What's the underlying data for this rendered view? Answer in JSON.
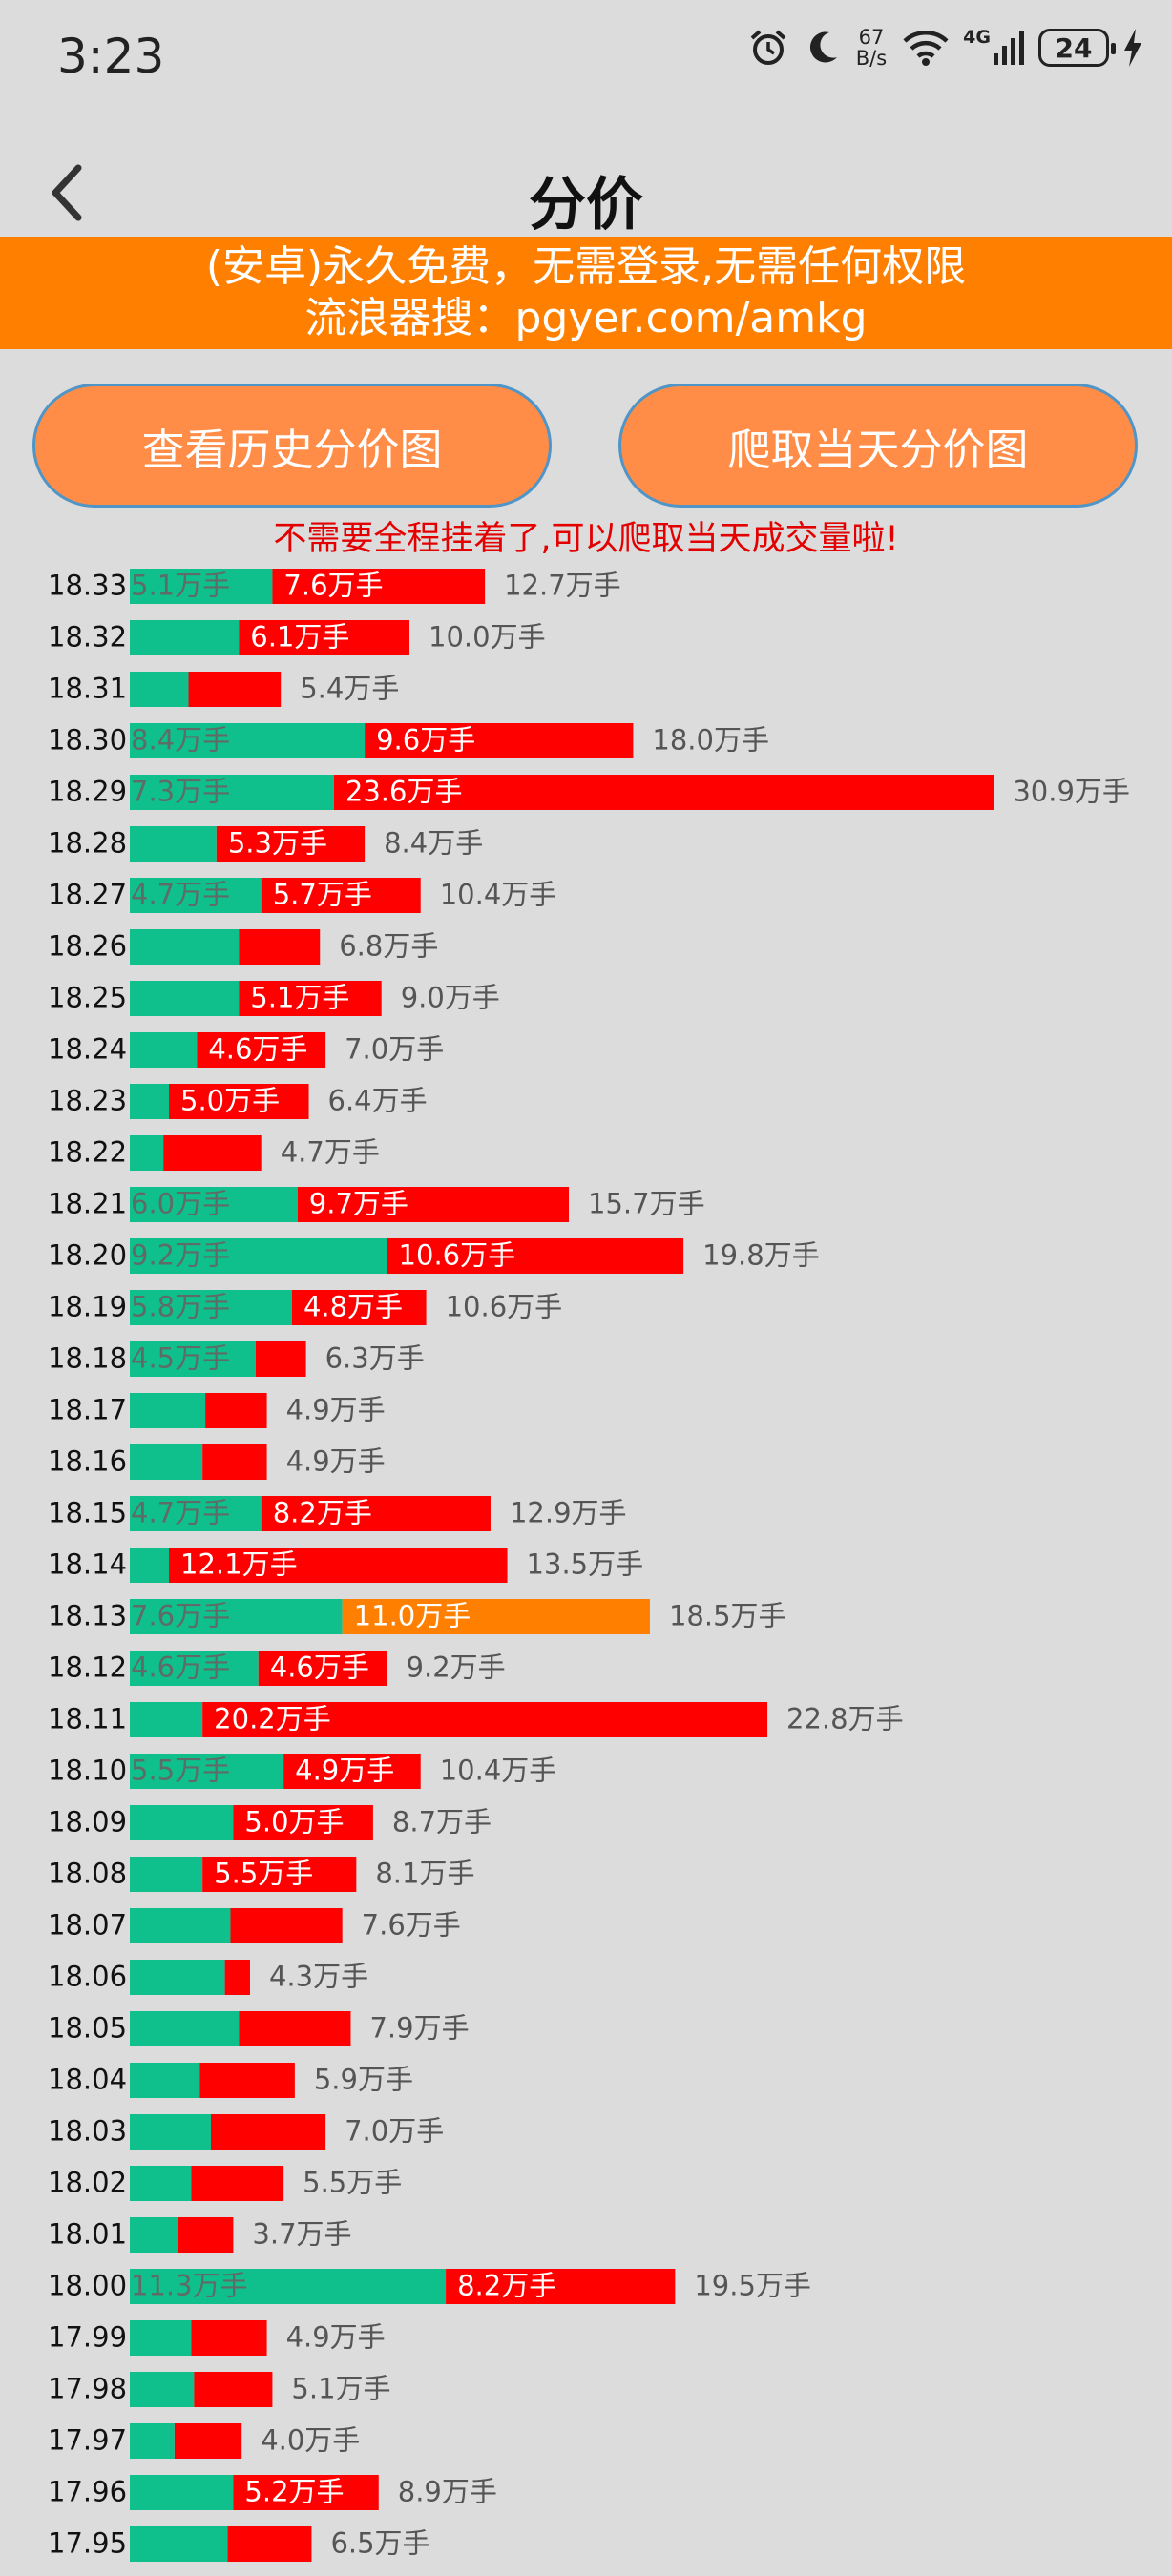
{
  "status_bar": {
    "time": "3:23",
    "net_speed_value": "67",
    "net_speed_unit": "B/s",
    "network_type": "4G",
    "battery_level": "24",
    "icons": [
      "alarm-icon",
      "moon-icon",
      "wifi-icon",
      "signal-icon",
      "battery-icon",
      "charging-icon"
    ]
  },
  "nav": {
    "title": "分价",
    "back_icon": "chevron-left-icon"
  },
  "banner": {
    "line1": "(安卓)永久免费，无需登录,无需任何权限",
    "line2": "流浪器搜：pgyer.com/amkg"
  },
  "buttons": {
    "history": "查看历史分价图",
    "crawl_today": "爬取当天分价图"
  },
  "notice": "不需要全程挂着了,可以爬取当天成交量啦!",
  "colors": {
    "green": "#10c08c",
    "red": "#ff0000",
    "highlight": "#ff8000",
    "banner": "#ff7f00",
    "button": "#ff8c47",
    "notice": "#e30000"
  },
  "chart_data": {
    "type": "bar",
    "orientation": "horizontal",
    "stacked": true,
    "unit": "万手",
    "series": [
      {
        "color": "#10c08c"
      },
      {
        "color": "#ff0000"
      }
    ],
    "rows": [
      {
        "price": "18.33",
        "buy": 5.1,
        "sell": 7.6,
        "total": 12.7,
        "buy_label": "5.1万手",
        "sell_label": "7.6万手",
        "total_label": "12.7万手"
      },
      {
        "price": "18.32",
        "buy": 3.9,
        "sell": 6.1,
        "total": 10.0,
        "buy_label": "",
        "sell_label": "6.1万手",
        "total_label": "10.0万手"
      },
      {
        "price": "18.31",
        "buy": 2.1,
        "sell": 3.3,
        "total": 5.4,
        "buy_label": "",
        "sell_label": "",
        "total_label": "5.4万手"
      },
      {
        "price": "18.30",
        "buy": 8.4,
        "sell": 9.6,
        "total": 18.0,
        "buy_label": "8.4万手",
        "sell_label": "9.6万手",
        "total_label": "18.0万手"
      },
      {
        "price": "18.29",
        "buy": 7.3,
        "sell": 23.6,
        "total": 30.9,
        "buy_label": "7.3万手",
        "sell_label": "23.6万手",
        "total_label": "30.9万手"
      },
      {
        "price": "18.28",
        "buy": 3.1,
        "sell": 5.3,
        "total": 8.4,
        "buy_label": "",
        "sell_label": "5.3万手",
        "total_label": "8.4万手"
      },
      {
        "price": "18.27",
        "buy": 4.7,
        "sell": 5.7,
        "total": 10.4,
        "buy_label": "4.7万手",
        "sell_label": "5.7万手",
        "total_label": "10.4万手"
      },
      {
        "price": "18.26",
        "buy": 3.9,
        "sell": 2.9,
        "total": 6.8,
        "buy_label": "",
        "sell_label": "",
        "total_label": "6.8万手"
      },
      {
        "price": "18.25",
        "buy": 3.9,
        "sell": 5.1,
        "total": 9.0,
        "buy_label": "",
        "sell_label": "5.1万手",
        "total_label": "9.0万手"
      },
      {
        "price": "18.24",
        "buy": 2.4,
        "sell": 4.6,
        "total": 7.0,
        "buy_label": "",
        "sell_label": "4.6万手",
        "total_label": "7.0万手"
      },
      {
        "price": "18.23",
        "buy": 1.4,
        "sell": 5.0,
        "total": 6.4,
        "buy_label": "",
        "sell_label": "5.0万手",
        "total_label": "6.4万手"
      },
      {
        "price": "18.22",
        "buy": 1.2,
        "sell": 3.5,
        "total": 4.7,
        "buy_label": "",
        "sell_label": "",
        "total_label": "4.7万手"
      },
      {
        "price": "18.21",
        "buy": 6.0,
        "sell": 9.7,
        "total": 15.7,
        "buy_label": "6.0万手",
        "sell_label": "9.7万手",
        "total_label": "15.7万手"
      },
      {
        "price": "18.20",
        "buy": 9.2,
        "sell": 10.6,
        "total": 19.8,
        "buy_label": "9.2万手",
        "sell_label": "10.6万手",
        "total_label": "19.8万手"
      },
      {
        "price": "18.19",
        "buy": 5.8,
        "sell": 4.8,
        "total": 10.6,
        "buy_label": "5.8万手",
        "sell_label": "4.8万手",
        "total_label": "10.6万手"
      },
      {
        "price": "18.18",
        "buy": 4.5,
        "sell": 1.8,
        "total": 6.3,
        "buy_label": "4.5万手",
        "sell_label": "",
        "total_label": "6.3万手"
      },
      {
        "price": "18.17",
        "buy": 2.7,
        "sell": 2.2,
        "total": 4.9,
        "buy_label": "",
        "sell_label": "",
        "total_label": "4.9万手"
      },
      {
        "price": "18.16",
        "buy": 2.6,
        "sell": 2.3,
        "total": 4.9,
        "buy_label": "",
        "sell_label": "",
        "total_label": "4.9万手"
      },
      {
        "price": "18.15",
        "buy": 4.7,
        "sell": 8.2,
        "total": 12.9,
        "buy_label": "4.7万手",
        "sell_label": "8.2万手",
        "total_label": "12.9万手"
      },
      {
        "price": "18.14",
        "buy": 1.4,
        "sell": 12.1,
        "total": 13.5,
        "buy_label": "",
        "sell_label": "12.1万手",
        "total_label": "13.5万手"
      },
      {
        "price": "18.13",
        "buy": 7.6,
        "sell": 11.0,
        "total": 18.5,
        "buy_label": "7.6万手",
        "sell_label": "11.0万手",
        "total_label": "18.5万手",
        "highlight": true
      },
      {
        "price": "18.12",
        "buy": 4.6,
        "sell": 4.6,
        "total": 9.2,
        "buy_label": "4.6万手",
        "sell_label": "4.6万手",
        "total_label": "9.2万手"
      },
      {
        "price": "18.11",
        "buy": 2.6,
        "sell": 20.2,
        "total": 22.8,
        "buy_label": "",
        "sell_label": "20.2万手",
        "total_label": "22.8万手"
      },
      {
        "price": "18.10",
        "buy": 5.5,
        "sell": 4.9,
        "total": 10.4,
        "buy_label": "5.5万手",
        "sell_label": "4.9万手",
        "total_label": "10.4万手"
      },
      {
        "price": "18.09",
        "buy": 3.7,
        "sell": 5.0,
        "total": 8.7,
        "buy_label": "",
        "sell_label": "5.0万手",
        "total_label": "8.7万手"
      },
      {
        "price": "18.08",
        "buy": 2.6,
        "sell": 5.5,
        "total": 8.1,
        "buy_label": "",
        "sell_label": "5.5万手",
        "total_label": "8.1万手"
      },
      {
        "price": "18.07",
        "buy": 3.6,
        "sell": 4.0,
        "total": 7.6,
        "buy_label": "",
        "sell_label": "",
        "total_label": "7.6万手"
      },
      {
        "price": "18.06",
        "buy": 3.4,
        "sell": 0.9,
        "total": 4.3,
        "buy_label": "",
        "sell_label": "",
        "total_label": "4.3万手"
      },
      {
        "price": "18.05",
        "buy": 3.9,
        "sell": 4.0,
        "total": 7.9,
        "buy_label": "",
        "sell_label": "",
        "total_label": "7.9万手"
      },
      {
        "price": "18.04",
        "buy": 2.5,
        "sell": 3.4,
        "total": 5.9,
        "buy_label": "",
        "sell_label": "",
        "total_label": "5.9万手"
      },
      {
        "price": "18.03",
        "buy": 2.9,
        "sell": 4.1,
        "total": 7.0,
        "buy_label": "",
        "sell_label": "",
        "total_label": "7.0万手"
      },
      {
        "price": "18.02",
        "buy": 2.2,
        "sell": 3.3,
        "total": 5.5,
        "buy_label": "",
        "sell_label": "",
        "total_label": "5.5万手"
      },
      {
        "price": "18.01",
        "buy": 1.7,
        "sell": 2.0,
        "total": 3.7,
        "buy_label": "",
        "sell_label": "",
        "total_label": "3.7万手"
      },
      {
        "price": "18.00",
        "buy": 11.3,
        "sell": 8.2,
        "total": 19.5,
        "buy_label": "11.3万手",
        "sell_label": "8.2万手",
        "total_label": "19.5万手"
      },
      {
        "price": "17.99",
        "buy": 2.2,
        "sell": 2.7,
        "total": 4.9,
        "buy_label": "",
        "sell_label": "",
        "total_label": "4.9万手"
      },
      {
        "price": "17.98",
        "buy": 2.3,
        "sell": 2.8,
        "total": 5.1,
        "buy_label": "",
        "sell_label": "",
        "total_label": "5.1万手"
      },
      {
        "price": "17.97",
        "buy": 1.6,
        "sell": 2.4,
        "total": 4.0,
        "buy_label": "",
        "sell_label": "",
        "total_label": "4.0万手"
      },
      {
        "price": "17.96",
        "buy": 3.7,
        "sell": 5.2,
        "total": 8.9,
        "buy_label": "",
        "sell_label": "5.2万手",
        "total_label": "8.9万手"
      },
      {
        "price": "17.95",
        "buy": 3.5,
        "sell": 3.0,
        "total": 6.5,
        "buy_label": "",
        "sell_label": "",
        "total_label": "6.5万手"
      }
    ]
  }
}
